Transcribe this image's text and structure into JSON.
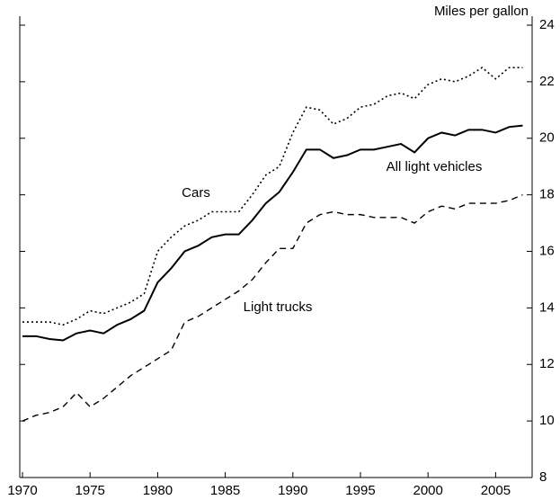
{
  "chart_data": {
    "type": "line",
    "y_axis_label": "Miles per gallon",
    "x": [
      1970,
      1971,
      1972,
      1973,
      1974,
      1975,
      1976,
      1977,
      1978,
      1979,
      1980,
      1981,
      1982,
      1983,
      1984,
      1985,
      1986,
      1987,
      1988,
      1989,
      1990,
      1991,
      1992,
      1993,
      1994,
      1995,
      1996,
      1997,
      1998,
      1999,
      2000,
      2001,
      2002,
      2003,
      2004,
      2005,
      2006,
      2007
    ],
    "series": [
      {
        "name": "Cars",
        "color": "#000000",
        "line_style": "dotted",
        "values": [
          13.5,
          13.5,
          13.5,
          13.4,
          13.6,
          13.9,
          13.8,
          14.0,
          14.2,
          14.5,
          16.0,
          16.5,
          16.9,
          17.1,
          17.4,
          17.4,
          17.4,
          18.0,
          18.7,
          19.0,
          20.2,
          21.1,
          21.0,
          20.5,
          20.7,
          21.1,
          21.2,
          21.5,
          21.6,
          21.4,
          21.9,
          22.1,
          22.0,
          22.2,
          22.5,
          22.1,
          22.5,
          22.5
        ]
      },
      {
        "name": "All light vehicles",
        "color": "#000000",
        "line_style": "solid",
        "values": [
          13.0,
          13.0,
          12.9,
          12.85,
          13.1,
          13.2,
          13.1,
          13.4,
          13.6,
          13.9,
          14.9,
          15.4,
          16.0,
          16.2,
          16.5,
          16.6,
          16.6,
          17.1,
          17.7,
          18.1,
          18.8,
          19.6,
          19.6,
          19.3,
          19.4,
          19.6,
          19.6,
          19.7,
          19.8,
          19.5,
          20.0,
          20.2,
          20.1,
          20.3,
          20.3,
          20.2,
          20.4,
          20.45
        ]
      },
      {
        "name": "Light trucks",
        "color": "#000000",
        "line_style": "dashed",
        "values": [
          10.0,
          10.2,
          10.3,
          10.5,
          11.0,
          10.5,
          10.8,
          11.2,
          11.6,
          11.9,
          12.2,
          12.5,
          13.5,
          13.7,
          14.0,
          14.3,
          14.6,
          15.0,
          15.6,
          16.1,
          16.1,
          17.0,
          17.3,
          17.4,
          17.3,
          17.3,
          17.2,
          17.2,
          17.2,
          17.0,
          17.4,
          17.6,
          17.5,
          17.7,
          17.7,
          17.7,
          17.8,
          18.0
        ]
      }
    ],
    "xlim": [
      1969.8,
      2007.7
    ],
    "xticks": [
      1970,
      1975,
      1980,
      1985,
      1990,
      1995,
      2000,
      2005
    ],
    "ylim": [
      8,
      24
    ],
    "yticks": [
      8,
      10,
      12,
      14,
      16,
      18,
      20,
      22,
      24
    ],
    "y_axis_side": "right"
  }
}
